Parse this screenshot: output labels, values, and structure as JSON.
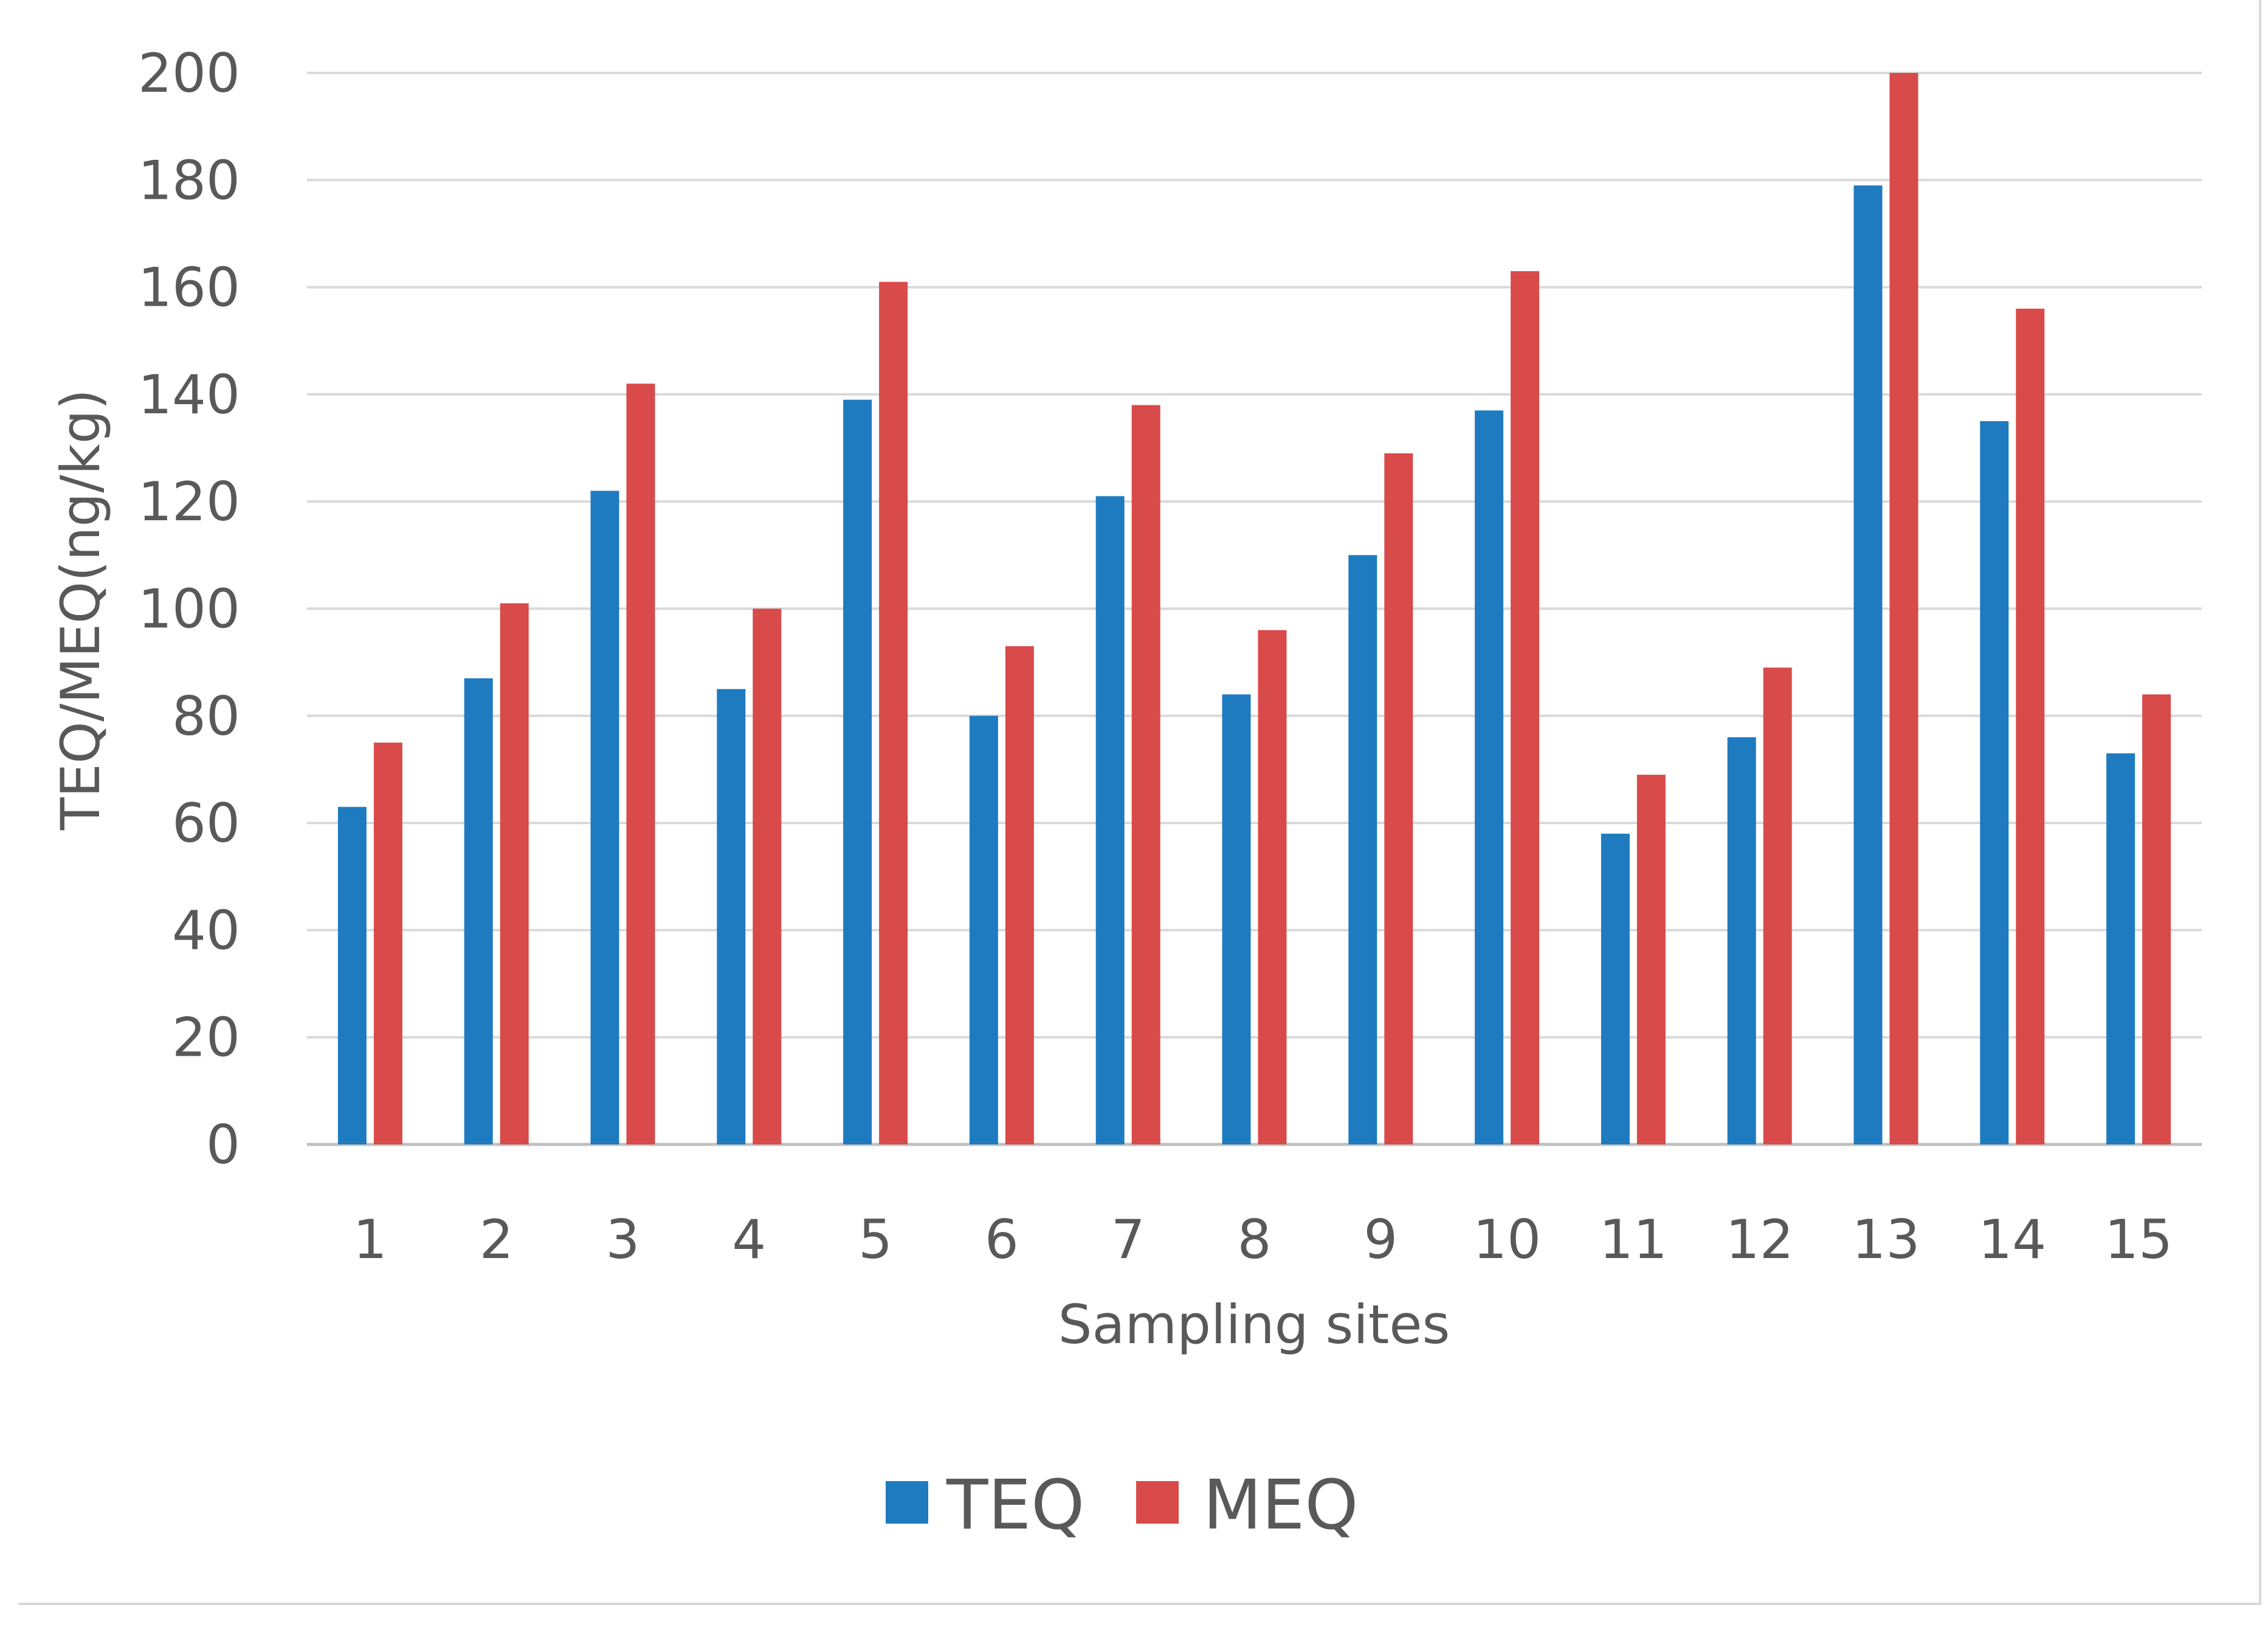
{
  "chart_data": {
    "type": "bar",
    "title": "",
    "xlabel": "Sampling sites",
    "ylabel": "TEQ/MEQ(ng/kg)",
    "ylim": [
      0,
      200
    ],
    "yticks": [
      0,
      20,
      40,
      60,
      80,
      100,
      120,
      140,
      160,
      180,
      200
    ],
    "grid": true,
    "legend_position": "bottom",
    "categories": [
      "1",
      "2",
      "3",
      "4",
      "5",
      "6",
      "7",
      "8",
      "9",
      "10",
      "11",
      "12",
      "13",
      "14",
      "15"
    ],
    "series": [
      {
        "name": "TEQ",
        "color": "#1f7bc0",
        "values": [
          63,
          87,
          122,
          85,
          139,
          80,
          121,
          84,
          110,
          137,
          58,
          76,
          179,
          135,
          73
        ]
      },
      {
        "name": "MEQ",
        "color": "#d94a4a",
        "values": [
          75,
          101,
          142,
          100,
          161,
          93,
          138,
          96,
          129,
          163,
          69,
          89,
          200,
          156,
          84
        ]
      }
    ]
  }
}
